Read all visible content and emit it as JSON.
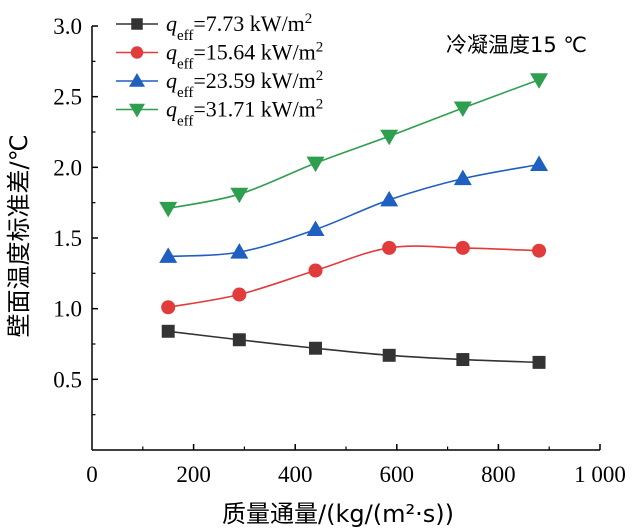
{
  "chart_data": {
    "type": "line",
    "xlabel": "质量通量/(kg/(m²·s))",
    "ylabel": "壁面温度标准差/℃",
    "annotation": "冷凝温度15 ℃",
    "xlim": [
      0,
      1000
    ],
    "ylim": [
      0,
      3.0
    ],
    "xticks": [
      0,
      200,
      400,
      600,
      800,
      1000
    ],
    "xtick_labels": [
      "0",
      "200",
      "400",
      "600",
      "800",
      "1 000"
    ],
    "yticks": [
      0.5,
      1.0,
      1.5,
      2.0,
      2.5,
      3.0
    ],
    "ytick_labels": [
      "0.5",
      "1.0",
      "1.5",
      "2.0",
      "2.5",
      "3.0"
    ],
    "legend_position": "top-left",
    "grid": false,
    "x": [
      150,
      290,
      440,
      585,
      730,
      880
    ],
    "series": [
      {
        "name": "q_eff=7.73 kW/m²",
        "legend": {
          "q": "q",
          "sub": "eff",
          "value": "=7.73 kW/m",
          "sup": "2"
        },
        "color": "#333333",
        "marker": "square",
        "values": [
          0.84,
          0.78,
          0.72,
          0.67,
          0.64,
          0.62
        ]
      },
      {
        "name": "q_eff=15.64 kW/m²",
        "legend": {
          "q": "q",
          "sub": "eff",
          "value": "=15.64 kW/m",
          "sup": "2"
        },
        "color": "#e23b3b",
        "marker": "circle",
        "values": [
          1.01,
          1.1,
          1.27,
          1.43,
          1.43,
          1.41
        ]
      },
      {
        "name": "q_eff=23.59 kW/m²",
        "legend": {
          "q": "q",
          "sub": "eff",
          "value": "=23.59 kW/m",
          "sup": "2"
        },
        "color": "#1f5fbf",
        "marker": "triangle-up",
        "values": [
          1.37,
          1.4,
          1.56,
          1.77,
          1.92,
          2.02
        ]
      },
      {
        "name": "q_eff=31.71 kW/m²",
        "legend": {
          "q": "q",
          "sub": "eff",
          "value": "=31.71 kW/m",
          "sup": "2"
        },
        "color": "#2e9e4f",
        "marker": "triangle-down",
        "values": [
          1.71,
          1.81,
          2.03,
          2.22,
          2.42,
          2.62
        ]
      }
    ]
  }
}
